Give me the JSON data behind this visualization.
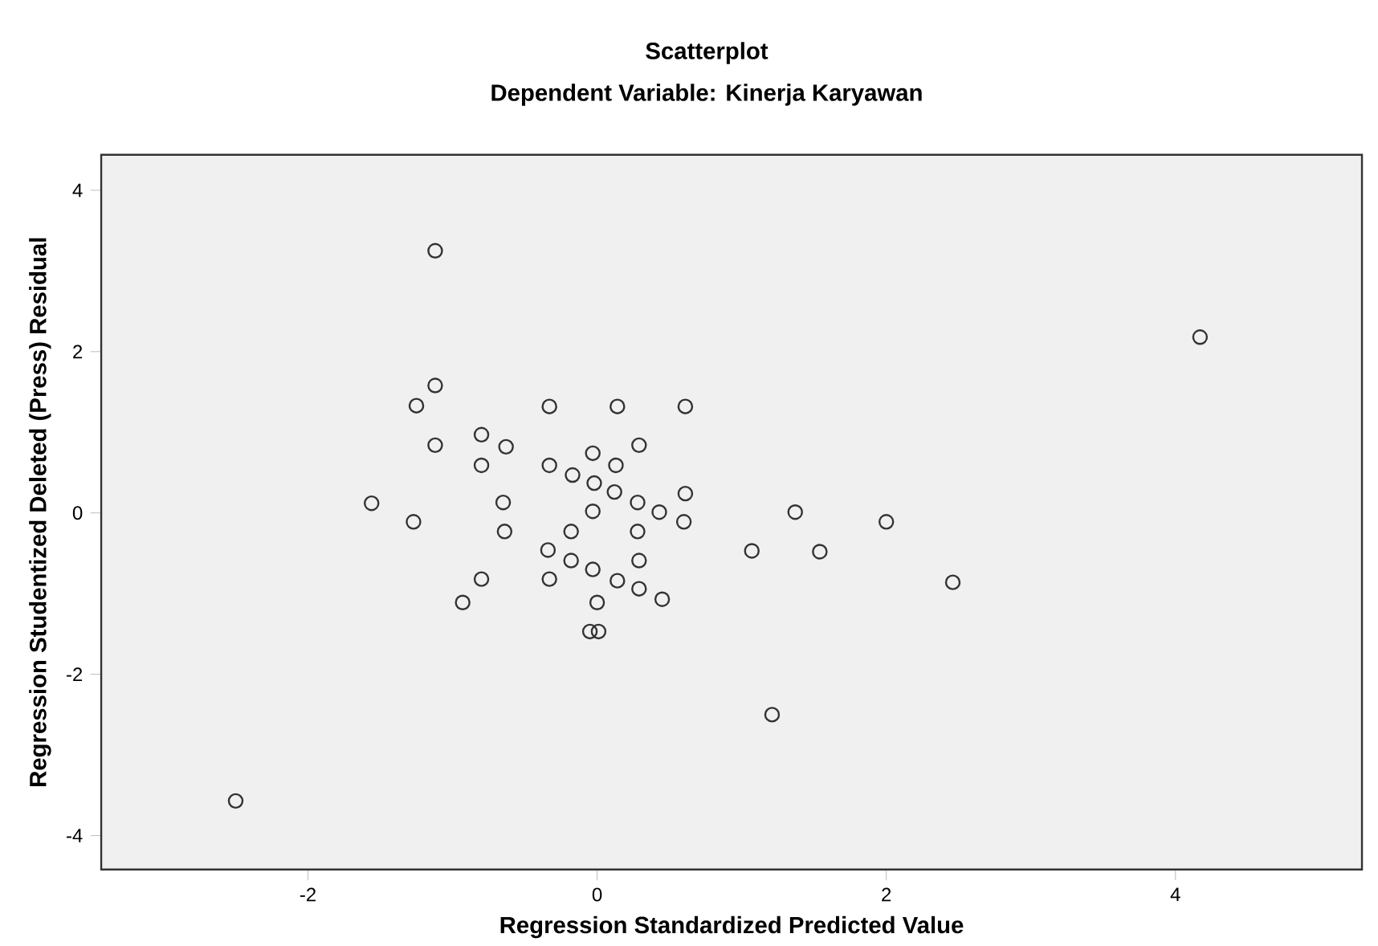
{
  "chart_data": {
    "type": "scatter",
    "title": "Scatterplot",
    "subtitle": "Dependent Variable: Kinerja Karyawan",
    "xlabel": "Regression Standardized Predicted Value",
    "ylabel": "Regression Studentized Deleted (Press) Residual",
    "marker": "circle",
    "color": "#333333",
    "x": [
      -1.12,
      -1.12,
      -1.25,
      -1.12,
      -0.8,
      -0.63,
      -0.8,
      -0.33,
      0.14,
      0.61,
      -0.33,
      -0.17,
      -0.03,
      0.13,
      0.29,
      -0.02,
      0.12,
      0.28,
      0.61,
      0.43,
      0.6,
      -1.56,
      -1.27,
      -0.65,
      -0.03,
      -0.64,
      -0.18,
      0.28,
      -0.34,
      -0.18,
      0.29,
      -0.03,
      -0.33,
      -0.8,
      0.14,
      0.29,
      0.45,
      -0.93,
      0.0,
      -0.05,
      0.01,
      -2.5,
      4.17,
      1.37,
      2.0,
      1.07,
      1.54,
      2.46,
      1.21
    ],
    "values": [
      3.25,
      1.58,
      1.33,
      0.84,
      0.97,
      0.82,
      0.59,
      1.32,
      1.32,
      1.32,
      0.59,
      0.47,
      0.74,
      0.59,
      0.84,
      0.37,
      0.26,
      0.13,
      0.24,
      0.01,
      -0.11,
      0.12,
      -0.11,
      0.13,
      0.02,
      -0.23,
      -0.23,
      -0.23,
      -0.46,
      -0.59,
      -0.59,
      -0.7,
      -0.82,
      -0.82,
      -0.84,
      -0.94,
      -1.07,
      -1.11,
      -1.11,
      -1.47,
      -1.47,
      -3.57,
      2.18,
      0.01,
      -0.11,
      -0.47,
      -0.48,
      -0.86,
      -2.5
    ],
    "xlim": [
      -3.43,
      5.29
    ],
    "ylim": [
      -4.42,
      4.44
    ],
    "xticks": [
      -2,
      0,
      2,
      4
    ],
    "yticks": [
      -4,
      -2,
      0,
      2,
      4
    ]
  }
}
